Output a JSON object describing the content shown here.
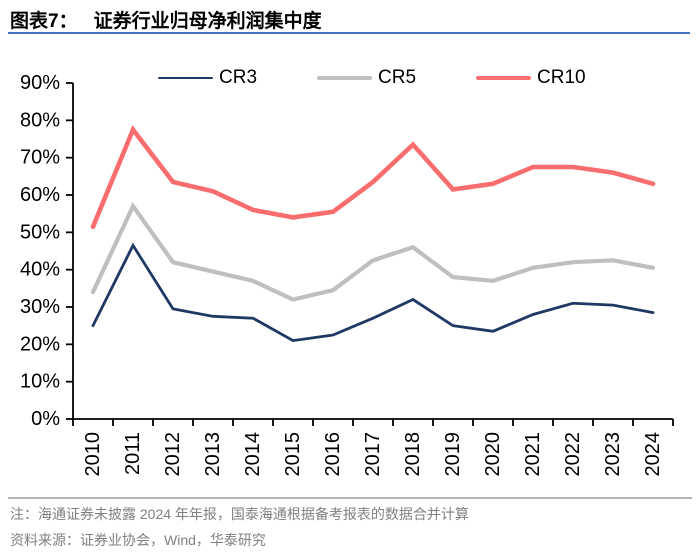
{
  "header": {
    "figure_label": "图表7：",
    "title": "证券行业归母净利润集中度",
    "underline_color": "#4472C4"
  },
  "chart_data": {
    "type": "line",
    "title": "证券行业归母净利润集中度",
    "categories": [
      "2010",
      "2011",
      "2012",
      "2013",
      "2014",
      "2015",
      "2016",
      "2017",
      "2018",
      "2019",
      "2020",
      "2021",
      "2022",
      "2023",
      "2024"
    ],
    "series": [
      {
        "name": "CR3",
        "color": "#1F3864",
        "line_width": 2.8,
        "values": [
          25,
          46.5,
          29.5,
          27.5,
          27,
          21,
          22.5,
          27,
          32,
          25,
          23.5,
          28,
          31,
          30.5,
          28.5
        ]
      },
      {
        "name": "CR5",
        "color": "#BFBFBF",
        "line_width": 4.2,
        "values": [
          34,
          57,
          42,
          39.5,
          37,
          32,
          34.5,
          42.5,
          46,
          38,
          37,
          40.5,
          42,
          42.5,
          40.5
        ]
      },
      {
        "name": "CR10",
        "color": "#F96D6E",
        "line_width": 4.6,
        "values": [
          51.5,
          77.5,
          63.5,
          61,
          56,
          54,
          55.5,
          63.5,
          73.5,
          61.5,
          63,
          67.5,
          67.5,
          66,
          63
        ]
      }
    ],
    "ylim": [
      0,
      90
    ],
    "ytick_step": 10,
    "ytick_suffix": "%",
    "axis_color": "#000000",
    "grid": false,
    "legend_position": "top",
    "x_label_rotation": -90
  },
  "footnote": {
    "note": "注：海通证券未披露 2024 年年报，国泰海通根据备考报表的数据合并计算",
    "source": "资料来源：证券业协会，Wind，华泰研究"
  }
}
